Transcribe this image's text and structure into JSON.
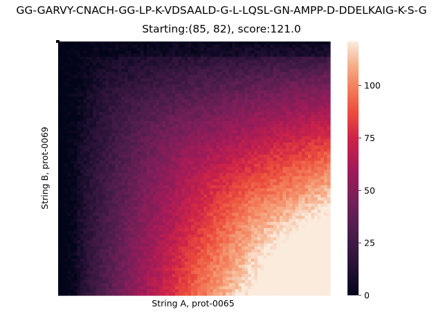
{
  "title_line1": "GG-GARVY-CNACH-GG-LP-K-VDSAALD-G-L-LQSL-GN-AMPP-D-DDELKAIG-K-S-G",
  "title_line2": "Starting:(85, 82), score:121.0",
  "chart_data": {
    "type": "heatmap",
    "title": "GG-GARVY-CNACH-GG-LP-K-VDSAALD-G-L-LQSL-GN-AMPP-D-DDELKAIG-K-S-G",
    "subtitle": "Starting:(85, 82), score:121.0",
    "xlabel": "String A, prot-0065",
    "ylabel": "String B, prot-0069",
    "n_cols": 86,
    "n_rows": 83,
    "start_cell": [
      85,
      82
    ],
    "max_score": 121.0,
    "colorbar": {
      "min": 0,
      "max": 121,
      "ticks": [
        0,
        25,
        50,
        75,
        100
      ],
      "colormap": "rocket"
    },
    "x_tick_labels": [],
    "y_tick_labels": []
  }
}
